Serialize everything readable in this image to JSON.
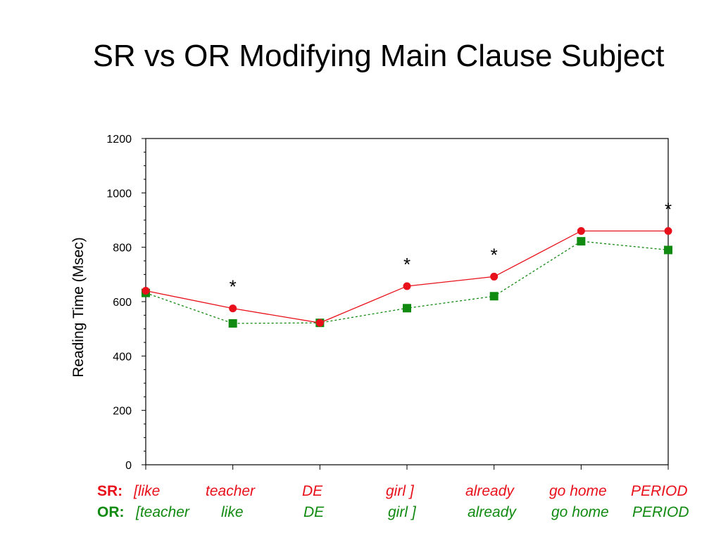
{
  "title": "SR vs OR Modifying Main Clause Subject",
  "colors": {
    "sr": "#e8101a",
    "or": "#118a11",
    "axis": "#000000"
  },
  "chart_data": {
    "type": "line",
    "ylabel": "Reading Time (Msec)",
    "ylim": [
      0,
      1200
    ],
    "yticks": [
      "0",
      "200",
      "400",
      "600",
      "800",
      "1000",
      "1200"
    ],
    "x": [
      1,
      2,
      3,
      4,
      5,
      6,
      7
    ],
    "series": [
      {
        "name": "SR",
        "values": [
          640,
          575,
          522,
          657,
          692,
          860,
          860
        ],
        "marker": "circle",
        "line": "solid",
        "color": "#e8101a"
      },
      {
        "name": "OR",
        "values": [
          632,
          520,
          522,
          576,
          620,
          822,
          790
        ],
        "marker": "square",
        "line": "dashed",
        "color": "#118a11"
      }
    ],
    "annotations": [
      {
        "x": 2,
        "text": "*"
      },
      {
        "x": 4,
        "text": "*"
      },
      {
        "x": 5,
        "text": "*"
      },
      {
        "x": 7,
        "text": "*"
      }
    ],
    "grid": false
  },
  "sr_row": {
    "label": "SR:",
    "words": [
      "[like",
      "teacher",
      "DE",
      "girl ]",
      "already",
      "go home",
      "PERIOD"
    ]
  },
  "or_row": {
    "label": "OR:",
    "words": [
      "[teacher",
      "like",
      "DE",
      "girl ]",
      "already",
      "go home",
      "PERIOD"
    ]
  }
}
